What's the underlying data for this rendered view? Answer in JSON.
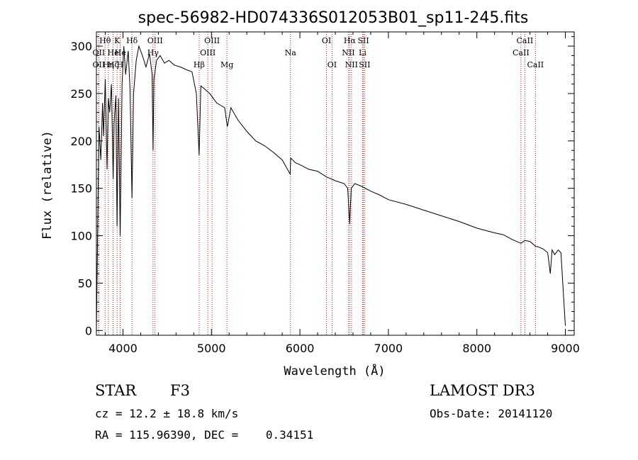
{
  "chart_data": {
    "type": "line",
    "title": "spec-56982-HD074336S012053B01_sp11-245.fits",
    "xlabel": "Wavelength (Å)",
    "ylabel": "Flux (relative)",
    "xlim": [
      3700,
      9100
    ],
    "ylim": [
      -5,
      315
    ],
    "xticks": [
      4000,
      5000,
      6000,
      7000,
      8000,
      9000
    ],
    "yticks": [
      0,
      50,
      100,
      150,
      200,
      250,
      300
    ],
    "grid": false,
    "series": [
      {
        "name": "flux",
        "x": [
          3700,
          3720,
          3730,
          3750,
          3770,
          3780,
          3800,
          3820,
          3835,
          3850,
          3870,
          3889,
          3900,
          3920,
          3933,
          3950,
          3968,
          3990,
          4010,
          4030,
          4060,
          4080,
          4102,
          4120,
          4150,
          4180,
          4220,
          4260,
          4300,
          4330,
          4340,
          4350,
          4380,
          4420,
          4470,
          4520,
          4580,
          4650,
          4720,
          4780,
          4830,
          4861,
          4880,
          4920,
          4980,
          5060,
          5150,
          5180,
          5220,
          5300,
          5400,
          5500,
          5600,
          5700,
          5800,
          5890,
          5895,
          5950,
          6000,
          6100,
          6200,
          6300,
          6400,
          6500,
          6540,
          6563,
          6580,
          6620,
          6700,
          6800,
          6900,
          7000,
          7200,
          7400,
          7600,
          7800,
          8000,
          8200,
          8300,
          8400,
          8498,
          8542,
          8600,
          8662,
          8700,
          8750,
          8800,
          8830,
          8850,
          8880,
          8920,
          8950,
          9000
        ],
        "values": [
          0,
          150,
          215,
          180,
          240,
          205,
          265,
          170,
          245,
          230,
          260,
          160,
          220,
          248,
          110,
          245,
          100,
          260,
          300,
          270,
          295,
          255,
          140,
          250,
          285,
          300,
          290,
          278,
          292,
          270,
          190,
          265,
          285,
          290,
          282,
          285,
          280,
          278,
          275,
          273,
          250,
          185,
          258,
          255,
          250,
          240,
          235,
          215,
          235,
          222,
          210,
          200,
          195,
          188,
          180,
          165,
          182,
          177,
          175,
          170,
          168,
          162,
          158,
          155,
          150,
          112,
          150,
          155,
          152,
          147,
          143,
          138,
          133,
          127,
          121,
          115,
          108,
          103,
          101,
          96,
          92,
          95,
          94,
          89,
          88,
          86,
          82,
          60,
          85,
          80,
          85,
          82,
          5
        ]
      }
    ],
    "line_markers": [
      {
        "label": "Hθ",
        "x": 3798,
        "row": 1
      },
      {
        "label": "OII",
        "x": 3727,
        "row": 2
      },
      {
        "label": "OII",
        "x": 3727,
        "row": 3
      },
      {
        "label": "Hη",
        "x": 3835,
        "row": 3
      },
      {
        "label": "He",
        "x": 3889,
        "row": 2
      },
      {
        "label": "Hζ",
        "x": 3889,
        "row": 3
      },
      {
        "label": "K",
        "x": 3934,
        "row": 1
      },
      {
        "label": "He",
        "x": 3970,
        "row": 2
      },
      {
        "label": "H",
        "x": 3968,
        "row": 3
      },
      {
        "label": "Hδ",
        "x": 4102,
        "row": 1
      },
      {
        "label": "OIII",
        "x": 4363,
        "row": 1
      },
      {
        "label": "Hγ",
        "x": 4340,
        "row": 2
      },
      {
        "label": "Hβ",
        "x": 4861,
        "row": 3
      },
      {
        "label": "OIII",
        "x": 5007,
        "row": 1
      },
      {
        "label": "OIII",
        "x": 4959,
        "row": 2
      },
      {
        "label": "Mg",
        "x": 5175,
        "row": 3
      },
      {
        "label": "Na",
        "x": 5893,
        "row": 2
      },
      {
        "label": "OI",
        "x": 6300,
        "row": 1
      },
      {
        "label": "OI",
        "x": 6363,
        "row": 3
      },
      {
        "label": "Hα",
        "x": 6563,
        "row": 1
      },
      {
        "label": "NII",
        "x": 6548,
        "row": 2
      },
      {
        "label": "NII",
        "x": 6583,
        "row": 3
      },
      {
        "label": "SII",
        "x": 6717,
        "row": 1
      },
      {
        "label": "Li",
        "x": 6708,
        "row": 2
      },
      {
        "label": "SII",
        "x": 6731,
        "row": 3
      },
      {
        "label": "CaII",
        "x": 8542,
        "row": 1
      },
      {
        "label": "CaII",
        "x": 8498,
        "row": 2
      },
      {
        "label": "CaII",
        "x": 8662,
        "row": 3
      }
    ],
    "colors": {
      "line": "#000000",
      "marker": "#b22222",
      "axis": "#000000"
    }
  },
  "info": {
    "object_class": "STAR",
    "subclass": "F3",
    "survey": "LAMOST DR3",
    "cz": "cz = 12.2 ± 18.8 km/s",
    "obs_date": "Obs-Date: 20141120",
    "coords": "RA = 115.96390, DEC =    0.34151"
  }
}
